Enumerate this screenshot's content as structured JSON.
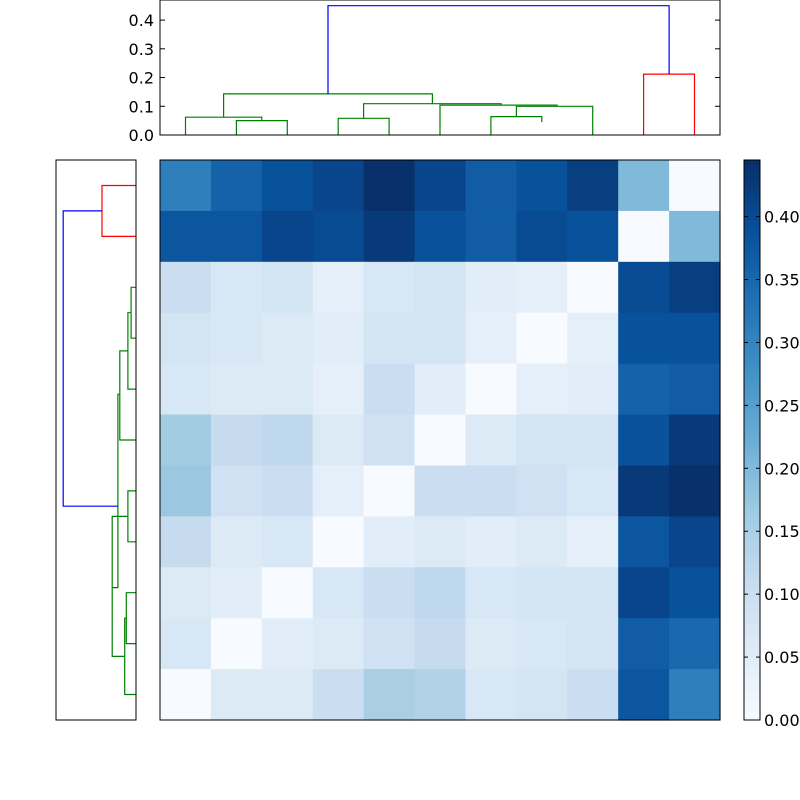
{
  "chart_data": {
    "type": "heatmap",
    "title": "",
    "xlabel": "",
    "ylabel": "",
    "colormap": "Blues",
    "color_range": [
      0,
      0.445
    ],
    "rows": 11,
    "cols": 11,
    "values": [
      [
        0.31,
        0.36,
        0.39,
        0.41,
        0.445,
        0.41,
        0.37,
        0.39,
        0.42,
        0.2,
        0.0
      ],
      [
        0.38,
        0.38,
        0.41,
        0.4,
        0.43,
        0.39,
        0.37,
        0.4,
        0.39,
        0.0,
        0.2
      ],
      [
        0.1,
        0.07,
        0.08,
        0.04,
        0.07,
        0.08,
        0.05,
        0.04,
        0.0,
        0.4,
        0.42
      ],
      [
        0.08,
        0.07,
        0.06,
        0.05,
        0.08,
        0.08,
        0.04,
        0.0,
        0.04,
        0.39,
        0.39
      ],
      [
        0.07,
        0.06,
        0.06,
        0.04,
        0.1,
        0.05,
        0.0,
        0.04,
        0.05,
        0.36,
        0.37
      ],
      [
        0.16,
        0.11,
        0.12,
        0.06,
        0.09,
        0.0,
        0.06,
        0.08,
        0.08,
        0.39,
        0.43
      ],
      [
        0.17,
        0.09,
        0.1,
        0.04,
        0.0,
        0.1,
        0.1,
        0.09,
        0.07,
        0.43,
        0.445
      ],
      [
        0.11,
        0.06,
        0.07,
        0.0,
        0.05,
        0.06,
        0.05,
        0.06,
        0.04,
        0.38,
        0.41
      ],
      [
        0.06,
        0.05,
        0.0,
        0.07,
        0.1,
        0.12,
        0.07,
        0.08,
        0.08,
        0.41,
        0.39
      ],
      [
        0.07,
        0.0,
        0.05,
        0.06,
        0.09,
        0.11,
        0.06,
        0.07,
        0.08,
        0.37,
        0.35
      ],
      [
        0.0,
        0.06,
        0.06,
        0.1,
        0.15,
        0.14,
        0.07,
        0.08,
        0.1,
        0.38,
        0.31
      ]
    ],
    "colorbar": {
      "range": [
        0,
        0.445
      ],
      "ticks": [
        "0.00",
        "0.05",
        "0.10",
        "0.15",
        "0.20",
        "0.25",
        "0.30",
        "0.35",
        "0.40"
      ]
    },
    "top_dendrogram": {
      "y_range": [
        0,
        0.47
      ],
      "ticks": [
        "0.0",
        "0.1",
        "0.2",
        "0.3",
        "0.4"
      ],
      "height_scale": [
        0,
        0.47
      ],
      "colors": {
        "root": "#0000ff",
        "cluster_a": "#008000",
        "cluster_b": "#ff0000"
      },
      "links": [
        {
          "color": "#008000",
          "i": [
            0.5,
            0.5,
            2.0,
            2.0
          ],
          "h": [
            0,
            0.062,
            0.062,
            0.05
          ]
        },
        {
          "color": "#008000",
          "i": [
            1.5,
            1.5,
            2.5,
            2.5
          ],
          "h": [
            0,
            0.05,
            0.05,
            0
          ]
        },
        {
          "color": "#008000",
          "i": [
            3.5,
            3.5,
            4.5,
            4.5
          ],
          "h": [
            0,
            0.058,
            0.058,
            0
          ]
        },
        {
          "color": "#008000",
          "i": [
            6.5,
            6.5,
            7.5,
            7.5
          ],
          "h": [
            0,
            0.064,
            0.064,
            0.045
          ]
        },
        {
          "color": "#008000",
          "i": [
            7.0,
            7.0,
            8.5,
            8.5
          ],
          "h": [
            0.064,
            0.1,
            0.1,
            0
          ]
        },
        {
          "color": "#008000",
          "i": [
            5.5,
            5.5,
            7.8,
            7.8
          ],
          "h": [
            0,
            0.104,
            0.104,
            0.1
          ]
        },
        {
          "color": "#008000",
          "i": [
            4.0,
            4.0,
            6.7,
            6.7
          ],
          "h": [
            0.058,
            0.109,
            0.109,
            0.104
          ]
        },
        {
          "color": "#008000",
          "i": [
            1.25,
            1.25,
            5.35,
            5.35
          ],
          "h": [
            0.062,
            0.143,
            0.143,
            0.109
          ]
        },
        {
          "color": "#ff0000",
          "i": [
            9.5,
            9.5,
            10.5,
            10.5
          ],
          "h": [
            0,
            0.212,
            0.212,
            0
          ]
        },
        {
          "color": "#0000ff",
          "i": [
            3.3,
            3.3,
            10.0,
            10.0
          ],
          "h": [
            0.143,
            0.45,
            0.45,
            0.212
          ]
        }
      ]
    },
    "left_dendrogram": {
      "height_scale": [
        0,
        0.47
      ],
      "colors": {
        "root": "#0000ff",
        "cluster_a": "#008000",
        "cluster_b": "#ff0000"
      },
      "links": [
        {
          "color": "#ff0000",
          "i": [
            0.5,
            0.5,
            1.5,
            1.5
          ],
          "h": [
            0,
            0.21,
            0.21,
            0
          ]
        },
        {
          "color": "#008000",
          "i": [
            2.5,
            2.5,
            3.5,
            3.5
          ],
          "h": [
            0,
            0.03,
            0.03,
            0
          ]
        },
        {
          "color": "#008000",
          "i": [
            3.0,
            3.0,
            4.5,
            4.5
          ],
          "h": [
            0.03,
            0.05,
            0.05,
            0
          ]
        },
        {
          "color": "#008000",
          "i": [
            3.75,
            3.75,
            5.5,
            5.5
          ],
          "h": [
            0.05,
            0.1,
            0.1,
            0
          ]
        },
        {
          "color": "#008000",
          "i": [
            6.5,
            6.5,
            7.5,
            7.5
          ],
          "h": [
            0,
            0.05,
            0.05,
            0
          ]
        },
        {
          "color": "#008000",
          "i": [
            7.0,
            7.0,
            7.0,
            7.0
          ],
          "h": [
            0.05,
            0.11,
            0.11,
            0.05
          ]
        },
        {
          "color": "#008000",
          "i": [
            8.5,
            8.5,
            9.5,
            9.5
          ],
          "h": [
            0,
            0.06,
            0.06,
            0
          ]
        },
        {
          "color": "#008000",
          "i": [
            9.0,
            9.0,
            10.5,
            10.5
          ],
          "h": [
            0.06,
            0.07,
            0.07,
            0
          ]
        },
        {
          "color": "#008000",
          "i": [
            7.0,
            7.0,
            9.75,
            9.75
          ],
          "h": [
            0.11,
            0.147,
            0.147,
            0.07
          ]
        },
        {
          "color": "#008000",
          "i": [
            4.6,
            4.6,
            8.4,
            8.4
          ],
          "h": [
            0.1,
            0.112,
            0.112,
            0.147
          ]
        },
        {
          "color": "#0000ff",
          "i": [
            1.0,
            1.0,
            6.8,
            6.8
          ],
          "h": [
            0.21,
            0.45,
            0.45,
            0.112
          ]
        }
      ]
    }
  }
}
